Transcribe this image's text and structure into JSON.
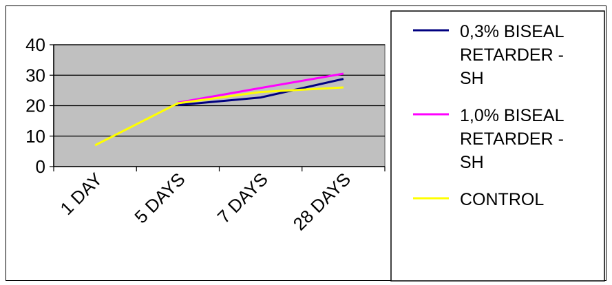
{
  "chart_data": {
    "type": "line",
    "title": "",
    "xlabel": "",
    "ylabel": "",
    "categories": [
      "1 DAY",
      "5 DAYS",
      "7 DAYS",
      "28 DAYS"
    ],
    "ylim": [
      0,
      40
    ],
    "yticks": [
      0,
      10,
      20,
      30,
      40
    ],
    "grid": true,
    "plot_background": "#c0c0c0",
    "legend_position": "right",
    "series": [
      {
        "name": "0,3% BISEAL RETARDER - SH",
        "label_lines": [
          "0,3% BISEAL",
          "RETARDER -",
          "SH"
        ],
        "color": "#000080",
        "values": [
          null,
          20.2,
          22.7,
          28.8
        ]
      },
      {
        "name": "1,0% BISEAL RETARDER - SH",
        "label_lines": [
          "1,0% BISEAL",
          "RETARDER -",
          "SH"
        ],
        "color": "#ff00ff",
        "values": [
          null,
          21.0,
          25.8,
          30.5
        ]
      },
      {
        "name": "CONTROL",
        "label_lines": [
          "CONTROL"
        ],
        "color": "#ffff00",
        "values": [
          7.0,
          20.8,
          24.5,
          26.0
        ]
      }
    ]
  }
}
